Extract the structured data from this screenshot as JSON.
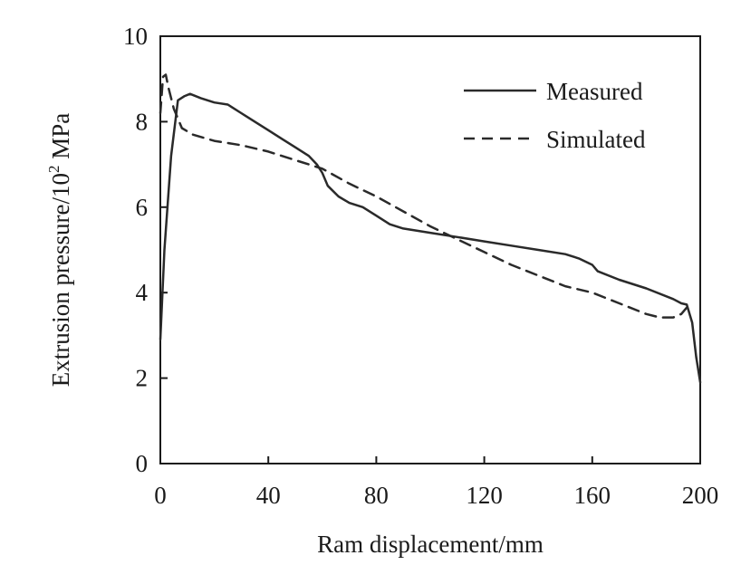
{
  "chart_data": {
    "type": "line",
    "title": "",
    "xlabel": "Ram displacement/mm",
    "ylabel_main": "Extrusion pressure/10",
    "ylabel_sup": "2",
    "ylabel_unit": " MPa",
    "xlim": [
      0,
      200
    ],
    "ylim": [
      0,
      10
    ],
    "xticks": [
      "0",
      "40",
      "80",
      "120",
      "160",
      "200"
    ],
    "yticks": [
      "0",
      "2",
      "4",
      "6",
      "8",
      "10"
    ],
    "grid": false,
    "legend_position": "top-right",
    "series": [
      {
        "name": "Measured",
        "style": "solid",
        "color": "#2a2a2a",
        "x": [
          0,
          1.5,
          4,
          6.5,
          9,
          11,
          15,
          20,
          25,
          30,
          35,
          40,
          45,
          50,
          55,
          58,
          60,
          62,
          66,
          70,
          75,
          80,
          85,
          90,
          100,
          110,
          120,
          130,
          140,
          150,
          155,
          160,
          162,
          170,
          180,
          190,
          193,
          195,
          197,
          198.5,
          200
        ],
        "y": [
          2.9,
          5.0,
          7.2,
          8.5,
          8.6,
          8.65,
          8.55,
          8.45,
          8.4,
          8.2,
          8.0,
          7.8,
          7.6,
          7.4,
          7.2,
          7.0,
          6.8,
          6.5,
          6.25,
          6.1,
          6.0,
          5.8,
          5.6,
          5.5,
          5.4,
          5.3,
          5.2,
          5.1,
          5.0,
          4.9,
          4.8,
          4.65,
          4.5,
          4.3,
          4.1,
          3.85,
          3.75,
          3.72,
          3.3,
          2.5,
          1.9
        ]
      },
      {
        "name": "Simulated",
        "style": "dashed",
        "color": "#2a2a2a",
        "x": [
          0,
          1,
          2,
          3,
          5,
          8,
          12,
          20,
          30,
          40,
          50,
          60,
          70,
          80,
          90,
          100,
          110,
          120,
          130,
          140,
          150,
          160,
          170,
          180,
          185,
          190,
          193,
          195
        ],
        "y": [
          8.2,
          9.05,
          9.1,
          8.8,
          8.3,
          7.85,
          7.7,
          7.55,
          7.45,
          7.3,
          7.1,
          6.9,
          6.55,
          6.25,
          5.9,
          5.55,
          5.25,
          4.95,
          4.65,
          4.4,
          4.15,
          4.0,
          3.75,
          3.5,
          3.42,
          3.42,
          3.5,
          3.65
        ]
      }
    ]
  }
}
